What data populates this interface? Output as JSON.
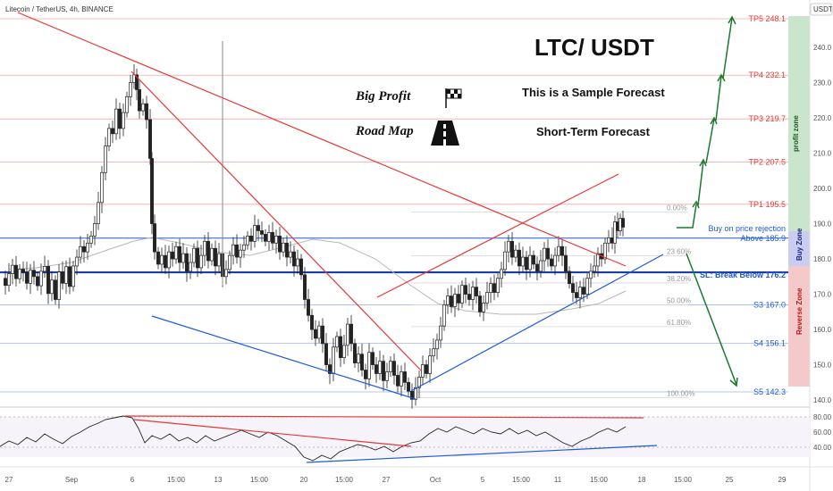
{
  "header": {
    "symbol_line": "Litecoin / TetherUS, 4h, BINANCE",
    "currency": "USDT"
  },
  "annotations": {
    "title": "LTC/ USDT",
    "big_profit": "Big Profit",
    "road_map": "Road Map",
    "sample_forecast": "This is a Sample Forecast",
    "short_term": "Short-Term Forecast",
    "buy_on_rejection": "Buy on price rejection",
    "above": "Above 185.9",
    "stop_loss": "SL: Break Below 176.2",
    "profit_zone": "profit zone",
    "buy_zone": "Buy Zone",
    "reverse_zone": "Reverse Zone"
  },
  "colors": {
    "red_line": "#e53935",
    "blue_line": "#1e5bd8",
    "target_red": "#e53935",
    "support_blue": "#1e5bd8",
    "arrow_green": "#1b7a2e",
    "candle_dark": "#222222",
    "profit_zone_bg": "#c9e6cd",
    "buy_zone_bg": "#c9cdef",
    "reverse_zone_bg": "#f3c9c9",
    "fib_gray": "#9e9e9e",
    "ma_gray": "#aaaaaa"
  },
  "chart_data": {
    "type": "candlestick",
    "title": "LTC/ USDT",
    "x_ticks": [
      "27",
      "Sep",
      "6",
      "15:00",
      "13",
      "15:00",
      "20",
      "15:00",
      "27",
      "Oct",
      "5",
      "15:00",
      "11",
      "15:00",
      "18",
      "15:00",
      "25",
      "29"
    ],
    "price_axis": {
      "ticks": [
        140.0,
        150.0,
        160.0,
        170.0,
        180.0,
        190.0,
        200.0,
        210.0,
        220.0,
        230.0,
        240.0
      ],
      "range": [
        137,
        252
      ]
    },
    "targets": [
      {
        "label": "TP5 248.1",
        "value": 248.1
      },
      {
        "label": "TP4 232.1",
        "value": 232.1
      },
      {
        "label": "TP3 219.7",
        "value": 219.7
      },
      {
        "label": "TP2 207.5",
        "value": 207.5
      },
      {
        "label": "TP1 195.5",
        "value": 195.5
      }
    ],
    "entry": {
      "value": 185.9
    },
    "stop_loss": {
      "value": 176.2
    },
    "supports": [
      {
        "label": "S3 167.0",
        "value": 167.0
      },
      {
        "label": "S4 156.1",
        "value": 156.1
      },
      {
        "label": "S5 142.3",
        "value": 142.3
      }
    ],
    "fibonacci": [
      {
        "label": "0.00%",
        "value": 193.3
      },
      {
        "label": "23.60%",
        "value": 180.9
      },
      {
        "label": "38.20%",
        "value": 173.2
      },
      {
        "label": "50.00%",
        "value": 167.0
      },
      {
        "label": "61.80%",
        "value": 160.8
      },
      {
        "label": "100.00%",
        "value": 140.7
      }
    ],
    "price_series": [
      [
        0,
        174.5
      ],
      [
        4,
        172.5
      ],
      [
        8,
        175.8
      ],
      [
        12,
        178.2
      ],
      [
        16,
        174.4
      ],
      [
        20,
        177.1
      ],
      [
        24,
        176.2
      ],
      [
        28,
        173.1
      ],
      [
        32,
        176.8
      ],
      [
        36,
        175.0
      ],
      [
        40,
        172.4
      ],
      [
        44,
        176.5
      ],
      [
        48,
        177.9
      ],
      [
        52,
        170.2
      ],
      [
        56,
        174.0
      ],
      [
        60,
        168.5
      ],
      [
        64,
        176.3
      ],
      [
        68,
        173.1
      ],
      [
        72,
        177.8
      ],
      [
        76,
        172.2
      ],
      [
        80,
        178.0
      ],
      [
        84,
        180.5
      ],
      [
        88,
        183.5
      ],
      [
        92,
        182.0
      ],
      [
        96,
        184.5
      ],
      [
        100,
        186.5
      ],
      [
        104,
        190.0
      ],
      [
        108,
        196.0
      ],
      [
        112,
        204.5
      ],
      [
        116,
        212.0
      ],
      [
        120,
        217.0
      ],
      [
        124,
        215.5
      ],
      [
        128,
        222.5
      ],
      [
        132,
        217.0
      ],
      [
        136,
        221.5
      ],
      [
        140,
        226.0
      ],
      [
        144,
        230.0
      ],
      [
        148,
        232.2
      ],
      [
        151,
        228.0
      ],
      [
        154,
        222.0
      ],
      [
        158,
        224.0
      ],
      [
        162,
        219.5
      ],
      [
        166,
        208.5
      ],
      [
        168,
        190.0
      ],
      [
        171,
        182.0
      ],
      [
        175,
        178.5
      ],
      [
        179,
        181.0
      ],
      [
        183,
        177.5
      ],
      [
        187,
        182.0
      ],
      [
        191,
        180.0
      ],
      [
        195,
        183.5
      ],
      [
        199,
        179.0
      ],
      [
        203,
        181.5
      ],
      [
        207,
        176.5
      ],
      [
        211,
        179.0
      ],
      [
        215,
        183.0
      ],
      [
        219,
        177.5
      ],
      [
        223,
        181.0
      ],
      [
        227,
        185.0
      ],
      [
        231,
        179.5
      ],
      [
        235,
        183.0
      ],
      [
        239,
        178.0
      ],
      [
        243,
        181.5
      ],
      [
        247,
        175.0
      ],
      [
        251,
        177.0
      ],
      [
        255,
        181.0
      ],
      [
        259,
        184.0
      ],
      [
        263,
        180.5
      ],
      [
        267,
        182.5
      ],
      [
        271,
        184.0
      ],
      [
        275,
        186.5
      ],
      [
        279,
        185.0
      ],
      [
        283,
        189.5
      ],
      [
        287,
        188.0
      ],
      [
        291,
        187.0
      ],
      [
        295,
        185.0
      ],
      [
        299,
        187.5
      ],
      [
        303,
        184.5
      ],
      [
        307,
        186.5
      ],
      [
        311,
        182.0
      ],
      [
        315,
        184.5
      ],
      [
        319,
        180.5
      ],
      [
        323,
        182.0
      ],
      [
        327,
        178.0
      ],
      [
        331,
        180.0
      ],
      [
        335,
        175.5
      ],
      [
        339,
        168.5
      ],
      [
        343,
        164.0
      ],
      [
        347,
        160.0
      ],
      [
        351,
        157.5
      ],
      [
        355,
        161.0
      ],
      [
        359,
        156.0
      ],
      [
        363,
        150.0
      ],
      [
        367,
        147.5
      ],
      [
        371,
        155.0
      ],
      [
        375,
        158.0
      ],
      [
        379,
        152.0
      ],
      [
        383,
        155.5
      ],
      [
        387,
        161.5
      ],
      [
        391,
        156.0
      ],
      [
        395,
        150.5
      ],
      [
        399,
        153.0
      ],
      [
        403,
        148.5
      ],
      [
        407,
        146.0
      ],
      [
        411,
        153.5
      ],
      [
        415,
        150.0
      ],
      [
        419,
        147.5
      ],
      [
        423,
        151.0
      ],
      [
        427,
        145.5
      ],
      [
        431,
        148.0
      ],
      [
        435,
        151.0
      ],
      [
        439,
        147.0
      ],
      [
        443,
        144.0
      ],
      [
        447,
        148.0
      ],
      [
        451,
        145.0
      ],
      [
        455,
        142.5
      ],
      [
        459,
        140.2
      ],
      [
        463,
        143.5
      ],
      [
        467,
        146.5
      ],
      [
        471,
        150.0
      ],
      [
        475,
        147.5
      ],
      [
        479,
        152.5
      ],
      [
        483,
        154.5
      ],
      [
        487,
        157.0
      ],
      [
        491,
        161.0
      ],
      [
        495,
        167.0
      ],
      [
        499,
        169.5
      ],
      [
        503,
        166.5
      ],
      [
        507,
        170.0
      ],
      [
        511,
        167.5
      ],
      [
        515,
        172.5
      ],
      [
        519,
        170.0
      ],
      [
        523,
        168.5
      ],
      [
        527,
        172.0
      ],
      [
        531,
        169.5
      ],
      [
        535,
        165.0
      ],
      [
        539,
        167.5
      ],
      [
        543,
        170.5
      ],
      [
        547,
        173.0
      ],
      [
        551,
        170.5
      ],
      [
        555,
        174.5
      ],
      [
        559,
        177.0
      ],
      [
        563,
        182.0
      ],
      [
        567,
        185.0
      ],
      [
        571,
        180.5
      ],
      [
        575,
        182.5
      ],
      [
        579,
        178.0
      ],
      [
        583,
        180.5
      ],
      [
        587,
        177.0
      ],
      [
        591,
        181.0
      ],
      [
        595,
        178.5
      ],
      [
        599,
        176.5
      ],
      [
        603,
        179.5
      ],
      [
        607,
        183.0
      ],
      [
        611,
        180.0
      ],
      [
        615,
        178.0
      ],
      [
        619,
        181.0
      ],
      [
        623,
        183.5
      ],
      [
        627,
        181.0
      ],
      [
        631,
        176.5
      ],
      [
        635,
        173.0
      ],
      [
        639,
        170.5
      ],
      [
        643,
        169.0
      ],
      [
        647,
        172.0
      ],
      [
        651,
        170.0
      ],
      [
        655,
        174.5
      ],
      [
        659,
        176.5
      ],
      [
        663,
        178.0
      ],
      [
        667,
        181.5
      ],
      [
        671,
        180.0
      ],
      [
        675,
        184.5
      ],
      [
        679,
        186.0
      ],
      [
        683,
        184.5
      ],
      [
        686,
        190.5
      ],
      [
        689,
        188.0
      ],
      [
        692,
        191.5
      ],
      [
        695,
        189.0
      ]
    ],
    "rsi": {
      "ticks": [
        40.0,
        60.0,
        80.0
      ],
      "range": [
        20,
        90
      ]
    }
  }
}
